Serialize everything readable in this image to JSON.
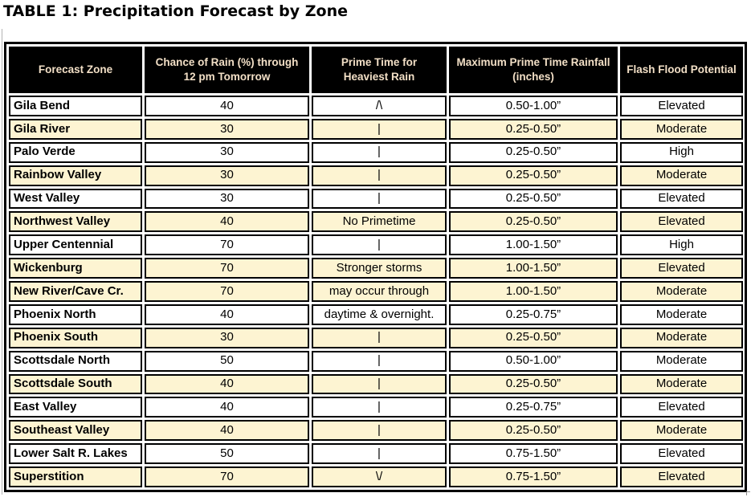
{
  "title": "TABLE 1: Precipitation Forecast by Zone",
  "colors": {
    "header_bg": "#000000",
    "header_text": "#f2dfc6",
    "row_shaded_bg": "#fdf4d2",
    "row_plain_bg": "#ffffff",
    "border": "#000000"
  },
  "table": {
    "columns": [
      "Forecast Zone",
      "Chance of Rain (%) through 12 pm Tomorrow",
      "Prime Time for Heaviest Rain",
      "Maximum Prime Time Rainfall (inches)",
      "Flash Flood Potential"
    ],
    "rows": [
      {
        "zone": "Gila Bend",
        "chance": "40",
        "prime": "/\\",
        "rainfall": "0.50-1.00”",
        "flood": "Elevated",
        "shaded": false
      },
      {
        "zone": "Gila River",
        "chance": "30",
        "prime": "|",
        "rainfall": "0.25-0.50”",
        "flood": "Moderate",
        "shaded": true
      },
      {
        "zone": "Palo Verde",
        "chance": "30",
        "prime": "|",
        "rainfall": "0.25-0.50”",
        "flood": "High",
        "shaded": false
      },
      {
        "zone": "Rainbow Valley",
        "chance": "30",
        "prime": "|",
        "rainfall": "0.25-0.50”",
        "flood": "Moderate",
        "shaded": true
      },
      {
        "zone": "West Valley",
        "chance": "30",
        "prime": "|",
        "rainfall": "0.25-0.50”",
        "flood": "Elevated",
        "shaded": false
      },
      {
        "zone": "Northwest Valley",
        "chance": "40",
        "prime": "No Primetime",
        "rainfall": "0.25-0.50”",
        "flood": "Elevated",
        "shaded": true
      },
      {
        "zone": "Upper Centennial",
        "chance": "70",
        "prime": "|",
        "rainfall": "1.00-1.50”",
        "flood": "High",
        "shaded": false
      },
      {
        "zone": "Wickenburg",
        "chance": "70",
        "prime": "Stronger storms",
        "rainfall": "1.00-1.50”",
        "flood": "Elevated",
        "shaded": true
      },
      {
        "zone": "New River/Cave Cr.",
        "chance": "70",
        "prime": "may occur through",
        "rainfall": "1.00-1.50”",
        "flood": "Moderate",
        "shaded": true
      },
      {
        "zone": "Phoenix North",
        "chance": "40",
        "prime": "daytime & overnight.",
        "rainfall": "0.25-0.75”",
        "flood": "Moderate",
        "shaded": false
      },
      {
        "zone": "Phoenix South",
        "chance": "30",
        "prime": "|",
        "rainfall": "0.25-0.50”",
        "flood": "Moderate",
        "shaded": true
      },
      {
        "zone": "Scottsdale North",
        "chance": "50",
        "prime": "|",
        "rainfall": "0.50-1.00”",
        "flood": "Moderate",
        "shaded": false
      },
      {
        "zone": "Scottsdale South",
        "chance": "40",
        "prime": "|",
        "rainfall": "0.25-0.50”",
        "flood": "Moderate",
        "shaded": true
      },
      {
        "zone": "East Valley",
        "chance": "40",
        "prime": "|",
        "rainfall": "0.25-0.75”",
        "flood": "Elevated",
        "shaded": false
      },
      {
        "zone": "Southeast Valley",
        "chance": "40",
        "prime": "|",
        "rainfall": "0.25-0.50”",
        "flood": "Moderate",
        "shaded": true
      },
      {
        "zone": "Lower Salt R. Lakes",
        "chance": "50",
        "prime": "|",
        "rainfall": "0.75-1.50”",
        "flood": "Elevated",
        "shaded": false
      },
      {
        "zone": "Superstition",
        "chance": "70",
        "prime": "\\/",
        "rainfall": "0.75-1.50”",
        "flood": "Elevated",
        "shaded": true
      }
    ]
  }
}
